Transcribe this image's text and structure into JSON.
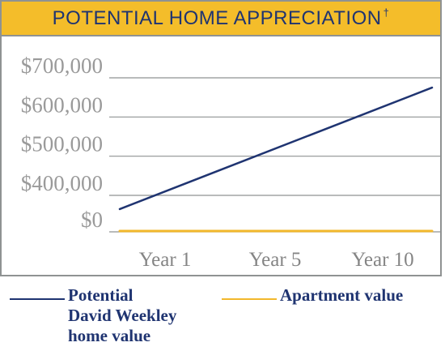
{
  "title": {
    "text": "POTENTIAL HOME APPRECIATION",
    "mark": "†"
  },
  "colors": {
    "title_background": "#f4bd2a",
    "title_text": "#1f3471",
    "home_line": "#1f3471",
    "apartment_line": "#f2b82c",
    "gridline": "#8f9292",
    "tick_label": "#9a9a9a"
  },
  "chart_data": {
    "type": "line",
    "title": "POTENTIAL HOME APPRECIATION†",
    "x": [
      "Year 1",
      "Year 5",
      "Year 10"
    ],
    "xlabel": "",
    "ylabel": "",
    "yticks": [
      0,
      400000,
      500000,
      600000,
      700000
    ],
    "ytick_labels": [
      "$0",
      "$400,000",
      "$500,000",
      "$600,000",
      "$700,000"
    ],
    "axis_note": "broken y-axis: gap between $0 and $400,000",
    "grid": true,
    "legend_position": "bottom",
    "series": [
      {
        "name": "Potential David Weekley home value",
        "legend_lines": [
          "Potential",
          "David Weekley",
          "home value"
        ],
        "color": "#1f3471",
        "start": 365000,
        "end": 675000
      },
      {
        "name": "Apartment value",
        "legend_lines": [
          "Apartment value"
        ],
        "color": "#f2b82c",
        "start": 0,
        "end": 0
      }
    ]
  }
}
